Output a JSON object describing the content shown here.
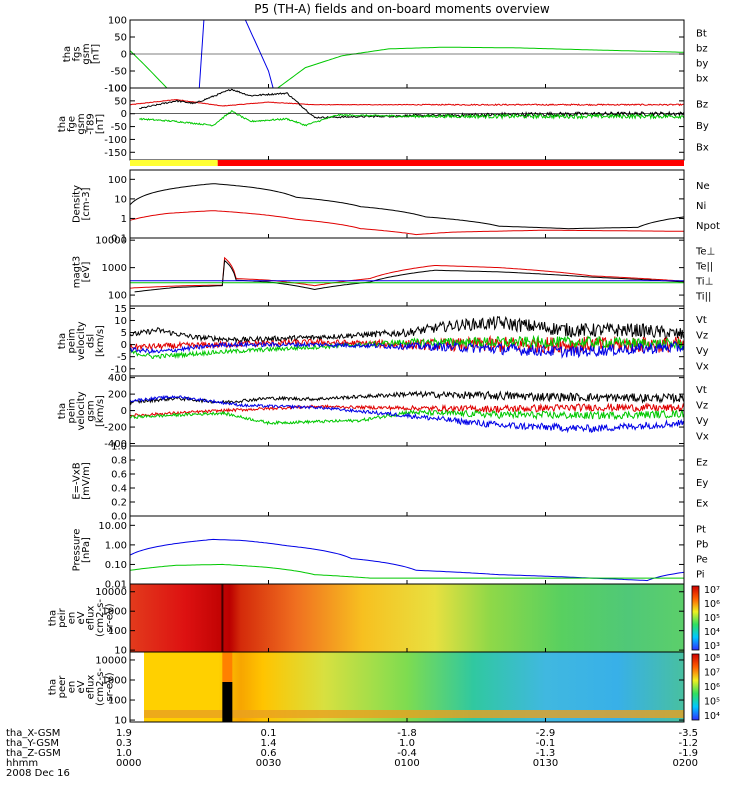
{
  "title": "P5 (TH-A) fields and on-board moments overview",
  "colors": {
    "black": "#000000",
    "red": "#e00000",
    "green": "#00c800",
    "blue": "#0000e6",
    "yellow": "#ffff33",
    "bar_red": "#ff0000"
  },
  "panels": [
    {
      "id": "fgs",
      "ylabel": [
        "tha",
        "fgs",
        "gsm",
        "[nT]"
      ],
      "yticks": [
        "100",
        "50",
        "0",
        "-50",
        "-100"
      ],
      "ylim": [
        -100,
        100
      ],
      "yscale": "linear",
      "legend": [
        {
          "text": "Bt",
          "color": "black"
        },
        {
          "text": "bz",
          "color": "red"
        },
        {
          "text": "by",
          "color": "green"
        },
        {
          "text": "bx",
          "color": "blue"
        }
      ]
    },
    {
      "id": "fge",
      "ylabel": [
        "tha",
        "fge",
        "gsm",
        "-T89",
        "[nT]"
      ],
      "yticks": [
        "100",
        "50",
        "0",
        "-50",
        "-100",
        "-150"
      ],
      "ylim": [
        -180,
        100
      ],
      "yscale": "linear",
      "legend": [
        {
          "text": "Bz",
          "color": "red"
        },
        {
          "text": "By",
          "color": "green"
        },
        {
          "text": "Bx",
          "color": "black"
        }
      ]
    },
    {
      "id": "density",
      "ylabel": [
        "Density",
        "[cm-3]"
      ],
      "yticks": [
        "100",
        "10",
        "1",
        "0.1"
      ],
      "ylim": [
        0.1,
        300
      ],
      "yscale": "log",
      "legend": [
        {
          "text": "Ne",
          "color": "red"
        },
        {
          "text": "Ni",
          "color": "black"
        },
        {
          "text": "Npot",
          "color": "blue"
        }
      ]
    },
    {
      "id": "temperature",
      "ylabel": [
        "magt3",
        "[eV]"
      ],
      "yticks": [
        "10000",
        "1000",
        "100"
      ],
      "ylim": [
        40,
        12000
      ],
      "yscale": "log",
      "legend": [
        {
          "text": "Te⊥",
          "color": "red"
        },
        {
          "text": "Te||",
          "color": "black"
        },
        {
          "text": "Ti⊥",
          "color": "blue"
        },
        {
          "text": "Ti||",
          "color": "green"
        }
      ]
    },
    {
      "id": "peim",
      "ylabel": [
        "tha",
        "peim",
        "velocity",
        "dsl",
        "[km/s]"
      ],
      "yticks": [
        "15",
        "10",
        "5",
        "0",
        "-5",
        "-10"
      ],
      "ylim": [
        -13,
        16
      ],
      "yscale": "linear",
      "legend": [
        {
          "text": "Vt",
          "color": "black"
        },
        {
          "text": "Vz",
          "color": "red"
        },
        {
          "text": "Vy",
          "color": "green"
        },
        {
          "text": "Vx",
          "color": "blue"
        }
      ]
    },
    {
      "id": "peim_gsm",
      "ylabel": [
        "tha",
        "peim",
        "velocity",
        "gsm",
        "[km/s]"
      ],
      "yticks": [
        "400",
        "200",
        "0",
        "-200",
        "-400"
      ],
      "ylim": [
        -430,
        420
      ],
      "yscale": "linear",
      "legend": [
        {
          "text": "Vt",
          "color": "black"
        },
        {
          "text": "Vz",
          "color": "red"
        },
        {
          "text": "Vy",
          "color": "green"
        },
        {
          "text": "Vx",
          "color": "blue"
        }
      ]
    },
    {
      "id": "efield",
      "ylabel": [
        "E=-VxB",
        "[mV/m]"
      ],
      "yticks": [
        "1.0",
        "0.8",
        "0.6",
        "0.4",
        "0.2",
        "0.0"
      ],
      "ylim": [
        0,
        1
      ],
      "yscale": "linear",
      "legend": [
        {
          "text": "Ez",
          "color": "red"
        },
        {
          "text": "Ey",
          "color": "green"
        },
        {
          "text": "Ex",
          "color": "blue"
        }
      ]
    },
    {
      "id": "pressure",
      "ylabel": [
        "Pressure",
        "[nPa]"
      ],
      "yticks": [
        "10.00",
        "1.00",
        "0.10",
        "0.01"
      ],
      "ylim": [
        0.01,
        30
      ],
      "yscale": "log",
      "legend": [
        {
          "text": "Pt",
          "color": "black"
        },
        {
          "text": "Pb",
          "color": "red"
        },
        {
          "text": "Pe",
          "color": "green"
        },
        {
          "text": "Pi",
          "color": "blue"
        }
      ]
    },
    {
      "id": "ion_spec",
      "ylabel": [
        "tha",
        "peir",
        "en",
        "eV",
        "eflux",
        "(cm2-s-",
        "sr-eV)"
      ],
      "yticks": [
        "10000",
        "1000",
        "100",
        "10"
      ],
      "ylim": [
        8,
        25000
      ],
      "yscale": "log",
      "colorbar_ticks": [
        "10⁷",
        "10⁶",
        "10⁵",
        "10⁴",
        "10³"
      ]
    },
    {
      "id": "elec_spec",
      "ylabel": [
        "tha",
        "peer",
        "en",
        "eV",
        "eflux",
        "(cm2-s-",
        "sr-eV)"
      ],
      "yticks": [
        "10000",
        "1000",
        "100",
        "10"
      ],
      "ylim": [
        8,
        25000
      ],
      "yscale": "log",
      "colorbar_ticks": [
        "10⁸",
        "10⁷",
        "10⁶",
        "10⁵",
        "10⁴"
      ]
    }
  ],
  "xaxis": {
    "rows": [
      {
        "label": "tha_X-GSM",
        "values": [
          "1.9",
          "0.1",
          "-1.8",
          "-2.9",
          "-3.5"
        ]
      },
      {
        "label": "tha_Y-GSM",
        "values": [
          "0.3",
          "1.4",
          "1.0",
          "-0.1",
          "-1.2"
        ]
      },
      {
        "label": "tha_Z-GSM",
        "values": [
          "1.0",
          "0.6",
          "-0.4",
          "-1.3",
          "-1.9"
        ]
      },
      {
        "label": "hhmm",
        "values": [
          "0000",
          "0030",
          "0100",
          "0130",
          "0200"
        ]
      }
    ],
    "date": "2008 Dec 16"
  },
  "chart_data": {
    "type": "line",
    "title": "P5 (TH-A) fields and on-board moments overview",
    "x_ticks": [
      "0000",
      "0030",
      "0100",
      "0130",
      "0200"
    ],
    "x_range": [
      "0000",
      "0200"
    ],
    "state_bar": {
      "segments": [
        {
          "from": "0000",
          "to": "0019",
          "color": "yellow"
        },
        {
          "from": "0019",
          "to": "0200",
          "color": "red"
        }
      ]
    },
    "series": {
      "fgs": {
        "by": [
          [
            0,
            10
          ],
          [
            3,
            -30
          ],
          [
            8,
            -100
          ],
          [
            32,
            -100
          ],
          [
            34,
            -80
          ],
          [
            38,
            -40
          ],
          [
            46,
            -5
          ],
          [
            56,
            15
          ],
          [
            68,
            20
          ],
          [
            84,
            18
          ],
          [
            100,
            12
          ],
          [
            112,
            8
          ],
          [
            120,
            5
          ]
        ],
        "bx": [
          [
            15,
            -100
          ],
          [
            16,
            100
          ]
        ],
        "bx2": [
          [
            25,
            100
          ],
          [
            30,
            -50
          ],
          [
            31,
            -100
          ]
        ]
      },
      "fge": {
        "Bz": [
          [
            0,
            35
          ],
          [
            10,
            55
          ],
          [
            20,
            30
          ],
          [
            30,
            45
          ],
          [
            40,
            35
          ],
          [
            60,
            35
          ],
          [
            90,
            35
          ],
          [
            120,
            35
          ]
        ],
        "Bx": [
          [
            2,
            20
          ],
          [
            10,
            50
          ],
          [
            14,
            40
          ],
          [
            22,
            95
          ],
          [
            26,
            70
          ],
          [
            34,
            80
          ],
          [
            40,
            -15
          ],
          [
            60,
            -8
          ],
          [
            90,
            -2
          ],
          [
            120,
            0
          ]
        ],
        "By": [
          [
            2,
            -20
          ],
          [
            10,
            -30
          ],
          [
            18,
            -45
          ],
          [
            22,
            10
          ],
          [
            26,
            -30
          ],
          [
            34,
            -20
          ],
          [
            38,
            -45
          ],
          [
            45,
            -5
          ],
          [
            60,
            -10
          ],
          [
            120,
            -10
          ]
        ]
      },
      "density": {
        "Ni": [
          [
            0,
            5
          ],
          [
            8,
            30
          ],
          [
            18,
            60
          ],
          [
            26,
            40
          ],
          [
            36,
            12
          ],
          [
            50,
            4
          ],
          [
            64,
            1.2
          ],
          [
            80,
            0.4
          ],
          [
            95,
            0.3
          ],
          [
            110,
            0.35
          ],
          [
            120,
            1.2
          ]
        ],
        "Ne": [
          [
            0,
            0.8
          ],
          [
            8,
            1.8
          ],
          [
            18,
            2.5
          ],
          [
            26,
            1.8
          ],
          [
            36,
            0.9
          ],
          [
            50,
            0.3
          ],
          [
            62,
            0.15
          ],
          [
            70,
            0.2
          ],
          [
            90,
            0.25
          ],
          [
            120,
            0.22
          ]
        ]
      },
      "temperature": {
        "Te_perp": [
          [
            0,
            180
          ],
          [
            12,
            220
          ],
          [
            20,
            230
          ],
          [
            20.2,
            2500
          ],
          [
            23,
            400
          ],
          [
            30,
            350
          ],
          [
            40,
            220
          ],
          [
            52,
            400
          ],
          [
            66,
            1200
          ],
          [
            80,
            1000
          ],
          [
            100,
            500
          ],
          [
            120,
            320
          ]
        ],
        "Te_par": [
          [
            1,
            130
          ],
          [
            10,
            190
          ],
          [
            20,
            220
          ],
          [
            20.2,
            2000
          ],
          [
            23,
            350
          ],
          [
            30,
            300
          ],
          [
            40,
            160
          ],
          [
            52,
            300
          ],
          [
            66,
            800
          ],
          [
            80,
            700
          ],
          [
            100,
            450
          ],
          [
            120,
            300
          ]
        ],
        "Ti_perp": [
          [
            0,
            330
          ],
          [
            120,
            330
          ]
        ],
        "Ti_par": [
          [
            0,
            280
          ],
          [
            120,
            280
          ]
        ]
      },
      "peim_dsl": {
        "Vt": [
          [
            0,
            4
          ],
          [
            6,
            6
          ],
          [
            14,
            3
          ],
          [
            24,
            2
          ],
          [
            40,
            3
          ],
          [
            60,
            5
          ],
          [
            70,
            8
          ],
          [
            80,
            9
          ],
          [
            95,
            6
          ],
          [
            110,
            6
          ],
          [
            120,
            4
          ]
        ],
        "Vz": [
          [
            0,
            -1
          ],
          [
            20,
            0
          ],
          [
            40,
            1
          ],
          [
            60,
            0
          ],
          [
            80,
            0
          ],
          [
            100,
            0
          ],
          [
            120,
            0
          ]
        ],
        "Vy": [
          [
            0,
            -3
          ],
          [
            5,
            -5
          ],
          [
            20,
            -3
          ],
          [
            40,
            -1
          ],
          [
            60,
            1
          ],
          [
            80,
            1
          ],
          [
            100,
            1
          ],
          [
            120,
            0
          ]
        ],
        "Vx": [
          [
            0,
            -2
          ],
          [
            6,
            -3
          ],
          [
            20,
            0
          ],
          [
            40,
            0
          ],
          [
            70,
            -1
          ],
          [
            95,
            -3
          ],
          [
            120,
            -1
          ]
        ]
      },
      "peim_gsm": {
        "Vt": [
          [
            0,
            100
          ],
          [
            10,
            150
          ],
          [
            20,
            100
          ],
          [
            30,
            150
          ],
          [
            40,
            140
          ],
          [
            60,
            200
          ],
          [
            80,
            180
          ],
          [
            100,
            160
          ],
          [
            120,
            150
          ]
        ],
        "Vz": [
          [
            0,
            -60
          ],
          [
            20,
            0
          ],
          [
            40,
            50
          ],
          [
            60,
            30
          ],
          [
            80,
            20
          ],
          [
            100,
            40
          ],
          [
            120,
            30
          ]
        ],
        "Vy": [
          [
            0,
            -80
          ],
          [
            20,
            -30
          ],
          [
            30,
            -150
          ],
          [
            50,
            -120
          ],
          [
            60,
            -20
          ],
          [
            80,
            -50
          ],
          [
            100,
            -60
          ],
          [
            120,
            -40
          ]
        ],
        "Vx": [
          [
            0,
            120
          ],
          [
            10,
            170
          ],
          [
            25,
            60
          ],
          [
            40,
            40
          ],
          [
            60,
            -60
          ],
          [
            80,
            -180
          ],
          [
            100,
            -220
          ],
          [
            120,
            -150
          ]
        ]
      },
      "pressure": {
        "Pi": [
          [
            0,
            0.3
          ],
          [
            8,
            1.0
          ],
          [
            18,
            1.9
          ],
          [
            24,
            1.7
          ],
          [
            34,
            0.9
          ],
          [
            48,
            0.2
          ],
          [
            62,
            0.05
          ],
          [
            80,
            0.03
          ],
          [
            100,
            0.02
          ],
          [
            112,
            0.015
          ],
          [
            120,
            0.04
          ]
        ],
        "Pe": [
          [
            0,
            0.05
          ],
          [
            10,
            0.09
          ],
          [
            20,
            0.1
          ],
          [
            30,
            0.07
          ],
          [
            40,
            0.03
          ],
          [
            52,
            0.02
          ],
          [
            70,
            0.02
          ],
          [
            100,
            0.02
          ],
          [
            120,
            0.02
          ]
        ]
      }
    }
  }
}
